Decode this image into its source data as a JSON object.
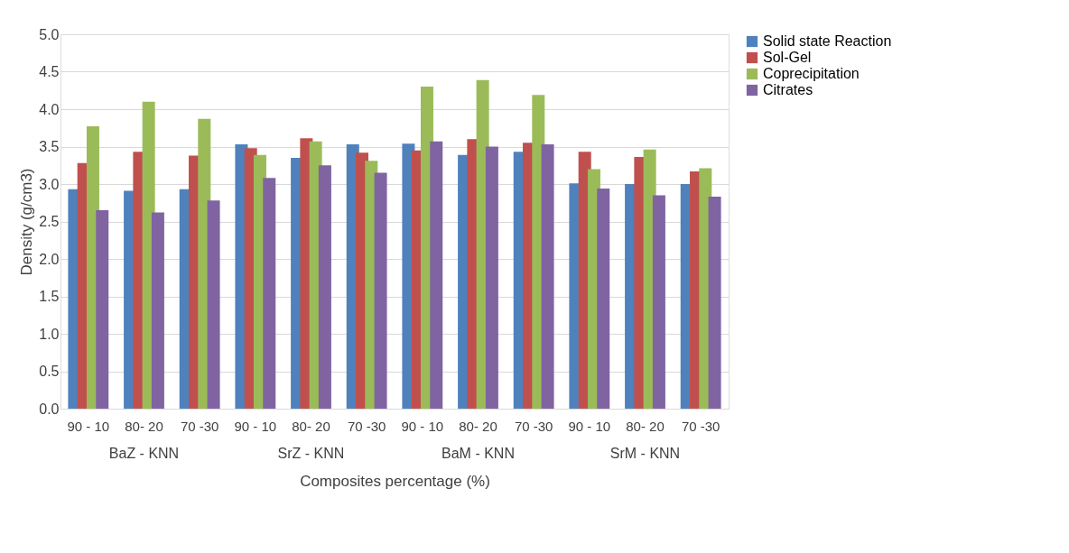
{
  "chart_data": {
    "type": "bar",
    "xlabel": "Composites percentage (%)",
    "ylabel": "Density (g/cm3)",
    "categories": [
      "90 - 10",
      "80- 20",
      "70 -30",
      "90 - 10",
      "80- 20",
      "70 -30",
      "90 - 10",
      "80- 20",
      "70 -30",
      "90 - 10",
      "80- 20",
      "70 -30"
    ],
    "annotations": [
      "BaZ - KNN",
      "SrZ - KNN",
      "BaM - KNN",
      "SrM - KNN"
    ],
    "series": [
      {
        "name": "Solid state Reaction",
        "color": "#4f81bd",
        "values": [
          2.93,
          2.91,
          2.93,
          3.53,
          3.35,
          3.53,
          3.54,
          3.39,
          3.43,
          3.01,
          3.0,
          3.0
        ]
      },
      {
        "name": "Sol-Gel",
        "color": "#c0504d",
        "values": [
          3.28,
          3.43,
          3.38,
          3.48,
          3.61,
          3.42,
          3.45,
          3.6,
          3.55,
          3.43,
          3.36,
          3.17
        ]
      },
      {
        "name": "Coprecipitation",
        "color": "#9bbb59",
        "values": [
          3.77,
          4.1,
          3.87,
          3.39,
          3.57,
          3.31,
          4.3,
          4.39,
          4.19,
          3.2,
          3.46,
          3.21
        ]
      },
      {
        "name": "Citrates",
        "color": "#8064a2",
        "values": [
          2.65,
          2.62,
          2.78,
          3.08,
          3.25,
          3.15,
          3.57,
          3.5,
          3.53,
          2.94,
          2.85,
          2.83
        ]
      }
    ],
    "ylim": [
      0,
      5
    ],
    "yticks": [
      {
        "value": 0,
        "label": "0.0"
      },
      0.5,
      {
        "value": 1,
        "label": "1.0"
      },
      1.5,
      {
        "value": 2,
        "label": "2.0"
      },
      2.5,
      {
        "value": 3,
        "label": "3.0"
      },
      3.5,
      {
        "value": 4,
        "label": "4.0"
      },
      4.5,
      {
        "value": 5,
        "label": "5.0"
      }
    ],
    "grid": "y",
    "legend": "right"
  }
}
